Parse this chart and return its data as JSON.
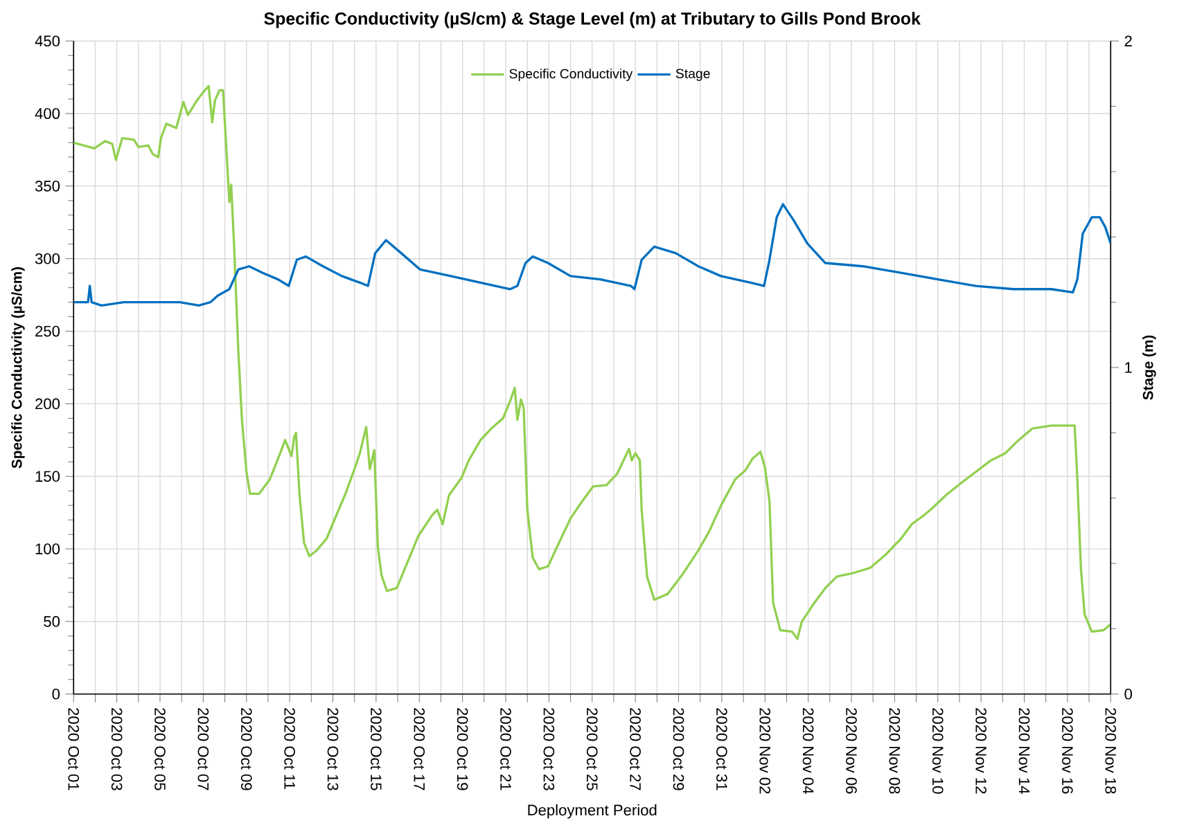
{
  "chart_data": {
    "type": "line",
    "title": "Specific Conductivity (µS/cm) & Stage Level (m) at Tributary to Gills Pond Brook",
    "xlabel": "Deployment Period",
    "ylabel": "Specific Conductivity (µS/cm)",
    "y2label": "Stage (m)",
    "xlim": [
      "2020-10-01",
      "2020-11-18"
    ],
    "xticks": [
      {
        "value": "2020-10-01",
        "label": "2020 Oct 01"
      },
      {
        "value": "2020-10-02",
        "label": null
      },
      {
        "value": "2020-10-03",
        "label": "2020 Oct 03"
      },
      {
        "value": "2020-10-04",
        "label": null
      },
      {
        "value": "2020-10-05",
        "label": "2020 Oct 05"
      },
      {
        "value": "2020-10-06",
        "label": null
      },
      {
        "value": "2020-10-07",
        "label": "2020 Oct 07"
      },
      {
        "value": "2020-10-08",
        "label": null
      },
      {
        "value": "2020-10-09",
        "label": "2020 Oct 09"
      },
      {
        "value": "2020-10-10",
        "label": null
      },
      {
        "value": "2020-10-11",
        "label": "2020 Oct 11"
      },
      {
        "value": "2020-10-12",
        "label": null
      },
      {
        "value": "2020-10-13",
        "label": "2020 Oct 13"
      },
      {
        "value": "2020-10-14",
        "label": null
      },
      {
        "value": "2020-10-15",
        "label": "2020 Oct 15"
      },
      {
        "value": "2020-10-16",
        "label": null
      },
      {
        "value": "2020-10-17",
        "label": "2020 Oct 17"
      },
      {
        "value": "2020-10-18",
        "label": null
      },
      {
        "value": "2020-10-19",
        "label": "2020 Oct 19"
      },
      {
        "value": "2020-10-20",
        "label": null
      },
      {
        "value": "2020-10-21",
        "label": "2020 Oct 21"
      },
      {
        "value": "2020-10-22",
        "label": null
      },
      {
        "value": "2020-10-23",
        "label": "2020 Oct 23"
      },
      {
        "value": "2020-10-24",
        "label": null
      },
      {
        "value": "2020-10-25",
        "label": "2020 Oct 25"
      },
      {
        "value": "2020-10-26",
        "label": null
      },
      {
        "value": "2020-10-27",
        "label": "2020 Oct 27"
      },
      {
        "value": "2020-10-28",
        "label": null
      },
      {
        "value": "2020-10-29",
        "label": "2020 Oct 29"
      },
      {
        "value": "2020-10-30",
        "label": null
      },
      {
        "value": "2020-10-31",
        "label": "2020 Oct 31"
      },
      {
        "value": "2020-11-01",
        "label": null
      },
      {
        "value": "2020-11-02",
        "label": "2020 Nov 02"
      },
      {
        "value": "2020-11-03",
        "label": null
      },
      {
        "value": "2020-11-04",
        "label": "2020 Nov 04"
      },
      {
        "value": "2020-11-05",
        "label": null
      },
      {
        "value": "2020-11-06",
        "label": "2020 Nov 06"
      },
      {
        "value": "2020-11-07",
        "label": null
      },
      {
        "value": "2020-11-08",
        "label": "2020 Nov 08"
      },
      {
        "value": "2020-11-09",
        "label": null
      },
      {
        "value": "2020-11-10",
        "label": "2020 Nov 10"
      },
      {
        "value": "2020-11-11",
        "label": null
      },
      {
        "value": "2020-11-12",
        "label": "2020 Nov 12"
      },
      {
        "value": "2020-11-13",
        "label": null
      },
      {
        "value": "2020-11-14",
        "label": "2020 Nov 14"
      },
      {
        "value": "2020-11-15",
        "label": null
      },
      {
        "value": "2020-11-16",
        "label": "2020 Nov 16"
      },
      {
        "value": "2020-11-17",
        "label": null
      },
      {
        "value": "2020-11-18",
        "label": "2020 Nov 18"
      }
    ],
    "ylim": [
      0,
      450
    ],
    "yticks": [
      0,
      50,
      100,
      150,
      200,
      250,
      300,
      350,
      400,
      450
    ],
    "y2lim": [
      0,
      2
    ],
    "y2ticks": [
      0,
      1,
      2
    ],
    "grid": true,
    "legend": "top",
    "line_style": "solid",
    "series": [
      {
        "name": "Specific Conductivity",
        "color": "#92d050",
        "x": [
          "2020-10-01T00:00",
          "2020-10-01T23:00",
          "2020-10-02T11:00",
          "2020-10-02T19:00",
          "2020-10-02T23:00",
          "2020-10-03T06:00",
          "2020-10-03T19:00",
          "2020-10-04T00:00",
          "2020-10-04T11:00",
          "2020-10-04T16:00",
          "2020-10-04T22:00",
          "2020-10-05T01:00",
          "2020-10-05T07:00",
          "2020-10-05T18:00",
          "2020-10-06T02:00",
          "2020-10-06T07:00",
          "2020-10-06T17:00",
          "2020-10-06T23:00",
          "2020-10-07T06:00",
          "2020-10-07T10:00",
          "2020-10-07T13:00",
          "2020-10-07T18:00",
          "2020-10-07T22:00",
          "2020-10-08T05:00",
          "2020-10-08T07:00",
          "2020-10-08T10:00",
          "2020-10-08T15:00",
          "2020-10-08T19:00",
          "2020-10-09T00:00",
          "2020-10-09T04:00",
          "2020-10-09T14:00",
          "2020-10-10T02:00",
          "2020-10-10T11:00",
          "2020-10-10T19:00",
          "2020-10-11T02:00",
          "2020-10-11T05:00",
          "2020-10-11T07:00",
          "2020-10-11T11:00",
          "2020-10-11T16:00",
          "2020-10-11T22:00",
          "2020-10-12T06:00",
          "2020-10-12T17:00",
          "2020-10-13T01:00",
          "2020-10-13T14:00",
          "2020-10-14T00:00",
          "2020-10-14T06:00",
          "2020-10-14T13:00",
          "2020-10-14T17:00",
          "2020-10-14T22:00",
          "2020-10-15T02:00",
          "2020-10-15T06:00",
          "2020-10-15T12:00",
          "2020-10-15T23:00",
          "2020-10-16T13:00",
          "2020-10-16T23:00",
          "2020-10-17T14:00",
          "2020-10-17T20:00",
          "2020-10-18T02:00",
          "2020-10-18T09:00",
          "2020-10-18T23:00",
          "2020-10-19T07:00",
          "2020-10-19T20:00",
          "2020-10-20T08:00",
          "2020-10-20T21:00",
          "2020-10-21T05:00",
          "2020-10-21T10:00",
          "2020-10-21T13:00",
          "2020-10-21T17:00",
          "2020-10-21T20:00",
          "2020-10-22T00:00",
          "2020-10-22T06:00",
          "2020-10-22T13:00",
          "2020-10-22T23:00",
          "2020-10-23T11:00",
          "2020-10-24T00:00",
          "2020-10-24T12:00",
          "2020-10-25T01:00",
          "2020-10-25T16:00",
          "2020-10-26T04:00",
          "2020-10-26T17:00",
          "2020-10-26T20:00",
          "2020-10-27T00:00",
          "2020-10-27T05:00",
          "2020-10-27T07:00",
          "2020-10-27T13:00",
          "2020-10-27T21:00",
          "2020-10-28T12:00",
          "2020-10-29T05:00",
          "2020-10-29T22:00",
          "2020-10-30T10:00",
          "2020-10-31T00:00",
          "2020-10-31T15:00",
          "2020-11-01T02:00",
          "2020-11-01T10:00",
          "2020-11-01T19:00",
          "2020-11-02T00:00",
          "2020-11-02T05:00",
          "2020-11-02T09:00",
          "2020-11-02T17:00",
          "2020-11-03T06:00",
          "2020-11-03T12:00",
          "2020-11-03T17:00",
          "2020-11-04T07:00",
          "2020-11-04T19:00",
          "2020-11-05T08:00",
          "2020-11-06T00:00",
          "2020-11-06T21:00",
          "2020-11-07T14:00",
          "2020-11-08T07:00",
          "2020-11-08T19:00",
          "2020-11-09T06:00",
          "2020-11-09T16:00",
          "2020-11-10T09:00",
          "2020-11-11T01:00",
          "2020-11-11T18:00",
          "2020-11-12T11:00",
          "2020-11-13T03:00",
          "2020-11-13T16:00",
          "2020-11-14T09:00",
          "2020-11-15T06:00",
          "2020-11-16T08:00",
          "2020-11-16T11:00",
          "2020-11-16T15:00",
          "2020-11-16T19:00",
          "2020-11-17T03:00",
          "2020-11-17T16:00",
          "2020-11-18T00:00"
        ],
        "values": [
          380,
          376,
          381,
          379,
          368,
          383,
          382,
          377,
          378,
          372,
          370,
          383,
          393,
          390,
          408,
          399,
          409,
          414,
          419,
          394,
          409,
          416,
          416,
          339,
          351,
          313,
          236,
          189,
          153,
          138,
          138,
          148,
          162,
          175,
          164,
          177,
          180,
          137,
          104,
          95,
          99,
          107,
          119,
          138,
          155,
          166,
          184,
          155,
          168,
          101,
          82,
          71,
          73,
          94,
          109,
          123,
          127,
          117,
          137,
          149,
          161,
          175,
          183,
          190,
          202,
          211,
          189,
          203,
          197,
          127,
          94,
          86,
          88,
          104,
          121,
          132,
          143,
          144,
          152,
          169,
          161,
          166,
          161,
          127,
          81,
          65,
          69,
          83,
          99,
          112,
          131,
          148,
          154,
          162,
          167,
          156,
          133,
          63,
          44,
          43,
          38,
          50,
          63,
          73,
          81,
          83,
          87,
          96,
          107,
          117,
          122,
          127,
          137,
          145,
          153,
          161,
          166,
          174,
          183,
          185,
          185,
          148,
          86,
          55,
          43,
          44,
          48
        ]
      },
      {
        "name": "Stage",
        "color": "#0070c0",
        "axis": "y2",
        "x": [
          "2020-10-01T00:00",
          "2020-10-01T16:00",
          "2020-10-01T18:00",
          "2020-10-01T20:00",
          "2020-10-02T07:00",
          "2020-10-03T08:00",
          "2020-10-04T13:00",
          "2020-10-05T22:00",
          "2020-10-06T19:00",
          "2020-10-07T08:00",
          "2020-10-07T16:00",
          "2020-10-08T05:00",
          "2020-10-08T15:00",
          "2020-10-09T03:00",
          "2020-10-09T18:00",
          "2020-10-10T11:00",
          "2020-10-10T23:00",
          "2020-10-11T08:00",
          "2020-10-11T18:00",
          "2020-10-12T13:00",
          "2020-10-13T10:00",
          "2020-10-14T06:00",
          "2020-10-14T15:00",
          "2020-10-14T23:00",
          "2020-10-15T11:00",
          "2020-10-16T04:00",
          "2020-10-17T01:00",
          "2020-10-18T11:00",
          "2020-10-19T20:00",
          "2020-10-21T05:00",
          "2020-10-21T13:00",
          "2020-10-21T22:00",
          "2020-10-22T06:00",
          "2020-10-22T23:00",
          "2020-10-24T00:00",
          "2020-10-25T09:00",
          "2020-10-26T19:00",
          "2020-10-26T23:00",
          "2020-10-27T07:00",
          "2020-10-27T21:00",
          "2020-10-28T21:00",
          "2020-10-29T22:00",
          "2020-10-30T23:00",
          "2020-11-01T08:00",
          "2020-11-01T23:00",
          "2020-11-02T05:00",
          "2020-11-02T13:00",
          "2020-11-02T20:00",
          "2020-11-03T08:00",
          "2020-11-03T23:00",
          "2020-11-04T19:00",
          "2020-11-06T13:00",
          "2020-11-08T07:00",
          "2020-11-10T00:00",
          "2020-11-11T18:00",
          "2020-11-13T12:00",
          "2020-11-15T06:00",
          "2020-11-16T06:00",
          "2020-11-16T11:00",
          "2020-11-16T17:00",
          "2020-11-17T03:00",
          "2020-11-17T12:00",
          "2020-11-17T18:00",
          "2020-11-18T00:00"
        ],
        "values": [
          1.2,
          1.2,
          1.25,
          1.2,
          1.19,
          1.2,
          1.2,
          1.2,
          1.19,
          1.2,
          1.22,
          1.24,
          1.3,
          1.31,
          1.29,
          1.27,
          1.25,
          1.33,
          1.34,
          1.31,
          1.28,
          1.26,
          1.25,
          1.35,
          1.39,
          1.35,
          1.3,
          1.28,
          1.26,
          1.24,
          1.25,
          1.32,
          1.34,
          1.32,
          1.28,
          1.27,
          1.25,
          1.24,
          1.33,
          1.37,
          1.35,
          1.31,
          1.28,
          1.26,
          1.25,
          1.33,
          1.46,
          1.5,
          1.45,
          1.38,
          1.32,
          1.31,
          1.29,
          1.27,
          1.25,
          1.24,
          1.24,
          1.23,
          1.27,
          1.41,
          1.46,
          1.46,
          1.43,
          1.38
        ]
      }
    ]
  }
}
